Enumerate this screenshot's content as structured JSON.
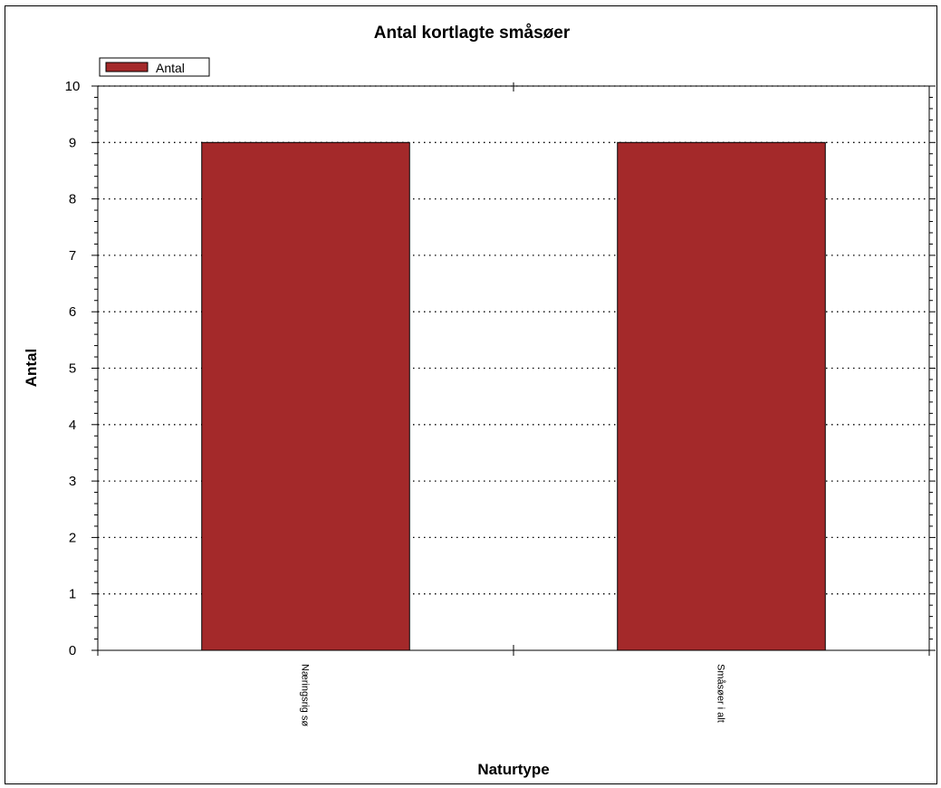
{
  "chart_data": {
    "type": "bar",
    "title": "Antal kortlagte småsøer",
    "xlabel": "Naturtype",
    "ylabel": "Antal",
    "categories": [
      "Næringsrig sø",
      "Småsøer i alt"
    ],
    "series": [
      {
        "name": "Antal",
        "values": [
          9,
          9
        ],
        "color": "#a4292a"
      }
    ],
    "ylim": [
      0,
      10
    ],
    "yticks": [
      0,
      1,
      2,
      3,
      4,
      5,
      6,
      7,
      8,
      9,
      10
    ],
    "grid": true,
    "legend_position": "top-left"
  }
}
